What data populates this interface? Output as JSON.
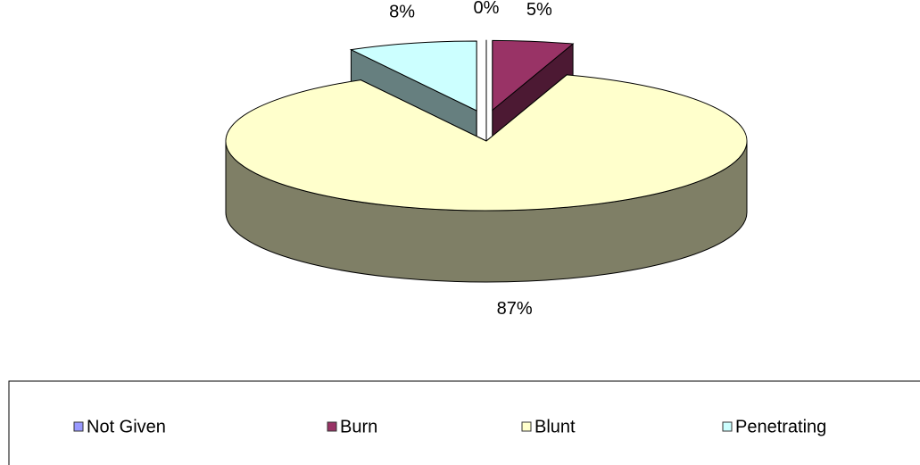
{
  "chart_data": {
    "type": "pie3d",
    "categories": [
      "Not Given",
      "Burn",
      "Blunt",
      "Penetrating"
    ],
    "values": [
      0,
      5,
      87,
      8
    ],
    "value_labels": [
      "0%",
      "5%",
      "87%",
      "8%"
    ],
    "colors": [
      "#9999ff",
      "#993366",
      "#ffffcc",
      "#ccffff"
    ],
    "legend": "bottom"
  }
}
